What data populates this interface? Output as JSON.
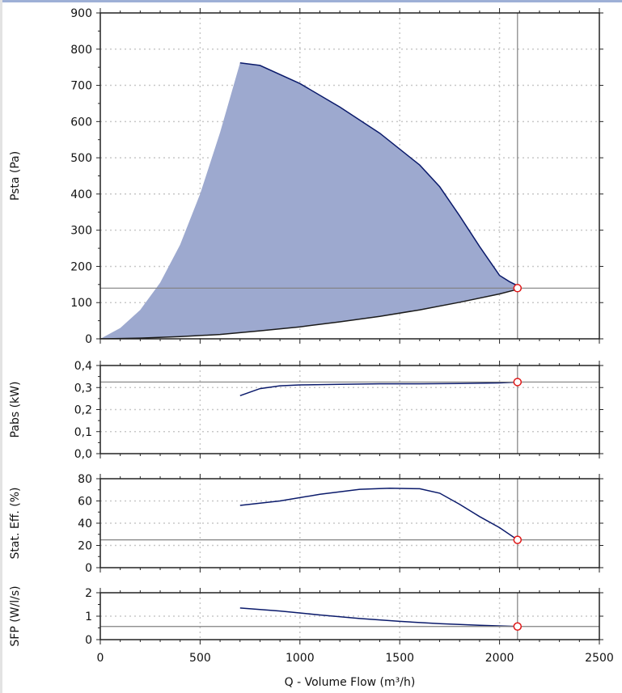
{
  "chart_data": [
    {
      "type": "area",
      "id": "psta",
      "ylabel": "Psta (Pa)",
      "xlim": [
        0,
        2500
      ],
      "ylim": [
        0,
        900
      ],
      "yticks": [
        "0",
        "100",
        "200",
        "300",
        "400",
        "500",
        "600",
        "700",
        "800",
        "900"
      ],
      "grid": true,
      "operating_point": {
        "x": 2090,
        "y": 140
      },
      "series": [
        {
          "role": "upper-boundary",
          "x": [
            0,
            100,
            200,
            300,
            400,
            500,
            600,
            700,
            800,
            1000,
            1200,
            1400,
            1600,
            1700,
            1800,
            1900,
            2000,
            2050,
            2085
          ],
          "y": [
            0,
            30,
            80,
            155,
            260,
            400,
            570,
            762,
            755,
            705,
            640,
            568,
            480,
            420,
            340,
            255,
            175,
            158,
            148
          ]
        },
        {
          "role": "lower-boundary",
          "x": [
            0,
            200,
            400,
            600,
            800,
            1000,
            1200,
            1400,
            1600,
            1800,
            2000,
            2085
          ],
          "y": [
            0,
            2,
            6,
            12,
            22,
            33,
            47,
            62,
            80,
            101,
            124,
            136
          ]
        }
      ]
    },
    {
      "type": "line",
      "id": "pabs",
      "ylabel": "Pabs (kW)",
      "xlim": [
        0,
        2500
      ],
      "ylim": [
        0,
        0.4
      ],
      "yticks": [
        "0,0",
        "0,1",
        "0,2",
        "0,3",
        "0,4"
      ],
      "grid": true,
      "operating_point": {
        "x": 2090,
        "y": 0.325
      },
      "series": [
        {
          "x": [
            700,
            800,
            900,
            1000,
            1200,
            1400,
            1600,
            1800,
            2000,
            2090
          ],
          "y": [
            0.263,
            0.295,
            0.308,
            0.312,
            0.315,
            0.317,
            0.317,
            0.318,
            0.321,
            0.325
          ]
        }
      ]
    },
    {
      "type": "line",
      "id": "eff",
      "ylabel": "Stat. Eff. (%)",
      "xlim": [
        0,
        2500
      ],
      "ylim": [
        0,
        80
      ],
      "yticks": [
        "0",
        "20",
        "40",
        "60",
        "80"
      ],
      "grid": true,
      "operating_point": {
        "x": 2090,
        "y": 25
      },
      "series": [
        {
          "x": [
            700,
            900,
            1100,
            1300,
            1450,
            1600,
            1700,
            1800,
            1900,
            2000,
            2090
          ],
          "y": [
            56,
            60,
            66,
            70.5,
            71.5,
            71,
            67,
            57,
            46,
            36,
            25
          ]
        }
      ]
    },
    {
      "type": "line",
      "id": "sfp",
      "ylabel": "SFP (W/l/s)",
      "xlabel": "Q - Volume Flow (m³/h)",
      "xlim": [
        0,
        2500
      ],
      "ylim": [
        0,
        2
      ],
      "yticks": [
        "0",
        "1",
        "2"
      ],
      "xticks": [
        "0",
        "500",
        "1000",
        "1500",
        "2000",
        "2500"
      ],
      "grid": true,
      "operating_point": {
        "x": 2090,
        "y": 0.56
      },
      "series": [
        {
          "x": [
            700,
            900,
            1100,
            1300,
            1500,
            1700,
            1900,
            2090
          ],
          "y": [
            1.35,
            1.22,
            1.05,
            0.9,
            0.78,
            0.68,
            0.61,
            0.56
          ]
        }
      ]
    }
  ],
  "colors": {
    "fill": "#9da9cf",
    "line": "#0a1a6b",
    "marker_stroke": "#e01818",
    "marker_fill": "#ffffff",
    "grid": "#c8c8c8",
    "crosshair": "#808080",
    "frame": "#222222"
  }
}
